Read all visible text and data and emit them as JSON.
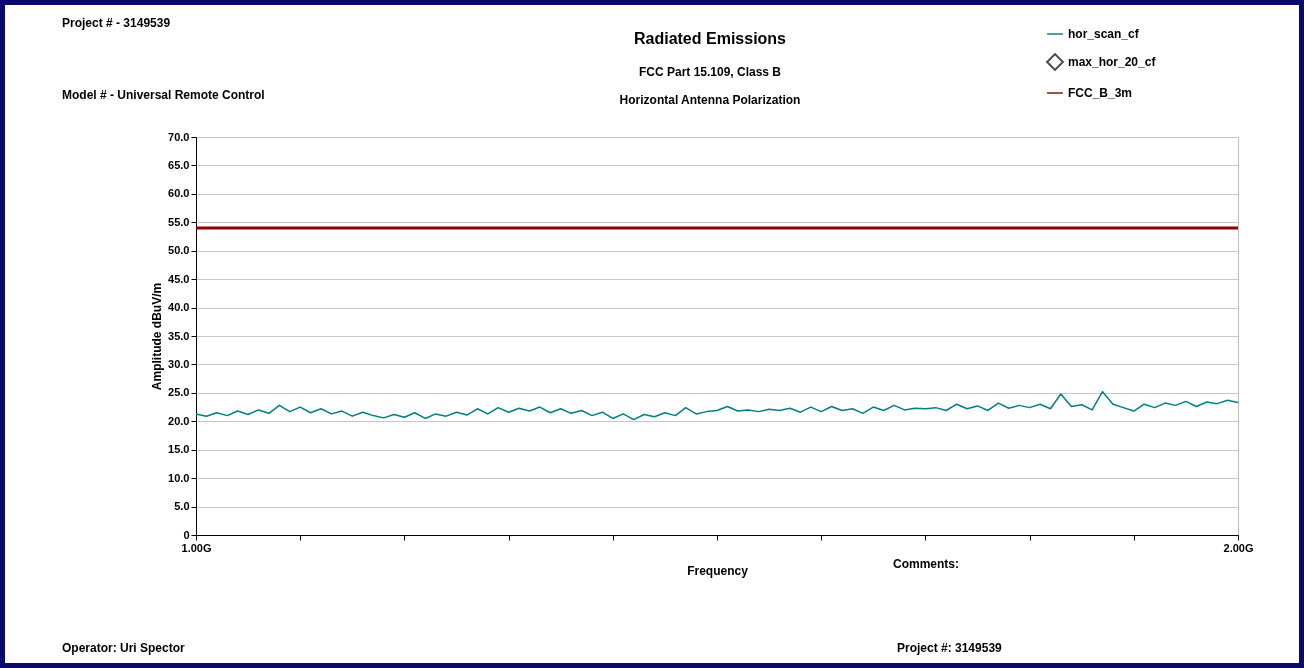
{
  "chart_data": {
    "type": "line",
    "title": "Radiated Emissions",
    "subtitle": "FCC Part 15.109, Class B\nHorizontal Antenna Polarization",
    "xlabel": "Frequency",
    "ylabel": "Amplitude dBuV/m",
    "annotations": [
      "Project # - 3149539",
      "Model # - Universal Remote Control",
      "Comments:",
      "Operator: Uri Spector",
      "Project #: 3149539"
    ],
    "x": [
      1.0,
      1.01,
      1.02,
      1.03,
      1.04,
      1.05,
      1.06,
      1.07,
      1.08,
      1.09,
      1.1,
      1.11,
      1.12,
      1.13,
      1.14,
      1.15,
      1.16,
      1.17,
      1.18,
      1.19,
      1.2,
      1.21,
      1.22,
      1.23,
      1.24,
      1.25,
      1.26,
      1.27,
      1.28,
      1.29,
      1.3,
      1.31,
      1.32,
      1.33,
      1.34,
      1.35,
      1.36,
      1.37,
      1.38,
      1.39,
      1.4,
      1.41,
      1.42,
      1.43,
      1.44,
      1.45,
      1.46,
      1.47,
      1.48,
      1.49,
      1.5,
      1.51,
      1.52,
      1.53,
      1.54,
      1.55,
      1.56,
      1.57,
      1.58,
      1.59,
      1.6,
      1.61,
      1.62,
      1.63,
      1.64,
      1.65,
      1.66,
      1.67,
      1.68,
      1.69,
      1.7,
      1.71,
      1.72,
      1.73,
      1.74,
      1.75,
      1.76,
      1.77,
      1.78,
      1.79,
      1.8,
      1.81,
      1.82,
      1.83,
      1.84,
      1.85,
      1.86,
      1.87,
      1.88,
      1.89,
      1.9,
      1.91,
      1.92,
      1.93,
      1.94,
      1.95,
      1.96,
      1.97,
      1.98,
      1.99,
      2.0
    ],
    "series": [
      {
        "name": "hor_scan_cf",
        "type": "line",
        "color": "#008080",
        "values": [
          21.3,
          20.9,
          21.5,
          21.0,
          21.8,
          21.2,
          22.0,
          21.4,
          22.8,
          21.7,
          22.5,
          21.5,
          22.2,
          21.3,
          21.8,
          20.9,
          21.6,
          21.0,
          20.6,
          21.2,
          20.7,
          21.5,
          20.5,
          21.3,
          20.9,
          21.6,
          21.1,
          22.2,
          21.3,
          22.4,
          21.6,
          22.3,
          21.8,
          22.5,
          21.5,
          22.2,
          21.4,
          21.9,
          21.0,
          21.6,
          20.5,
          21.3,
          20.3,
          21.2,
          20.8,
          21.5,
          21.0,
          22.4,
          21.3,
          21.7,
          21.9,
          22.6,
          21.8,
          22.0,
          21.7,
          22.1,
          21.9,
          22.3,
          21.6,
          22.5,
          21.7,
          22.6,
          21.9,
          22.2,
          21.4,
          22.5,
          21.9,
          22.8,
          22.0,
          22.3,
          22.2,
          22.4,
          21.9,
          23.0,
          22.2,
          22.7,
          21.9,
          23.2,
          22.3,
          22.8,
          22.4,
          23.0,
          22.2,
          24.8,
          22.6,
          22.9,
          22.0,
          25.2,
          23.0,
          22.4,
          21.8,
          23.0,
          22.4,
          23.2,
          22.8,
          23.5,
          22.6,
          23.4,
          23.1,
          23.7,
          23.3
        ]
      },
      {
        "name": "max_hor_20_cf",
        "type": "scatter",
        "marker": "diamond",
        "color": "#000000",
        "values": [
          null,
          null,
          null,
          null,
          null,
          null,
          null,
          null,
          null,
          null,
          null,
          null,
          null,
          null,
          null,
          null,
          null,
          null,
          null,
          null,
          null,
          null,
          null,
          null,
          null,
          null,
          null,
          null,
          null,
          null,
          null,
          null,
          null,
          null,
          null,
          null,
          null,
          null,
          null,
          null,
          null,
          null,
          null,
          null,
          null,
          null,
          null,
          null,
          null,
          null,
          null,
          null,
          null,
          null,
          null,
          null,
          null,
          null,
          null,
          null,
          null,
          null,
          null,
          null,
          null,
          null,
          null,
          null,
          null,
          null,
          null,
          null,
          null,
          null,
          null,
          null,
          null,
          null,
          null,
          null,
          null,
          null,
          null,
          null,
          null,
          null,
          null,
          null,
          null,
          null,
          null,
          null,
          null,
          null,
          null,
          null,
          null,
          null,
          null,
          null,
          null
        ]
      },
      {
        "name": "FCC_B_3m",
        "type": "line",
        "color": "#8b0000",
        "x": [
          1,
          2
        ],
        "values": [
          54,
          54
        ]
      }
    ],
    "xlim": [
      1,
      2
    ],
    "xticks": [
      {
        "value": 1,
        "label": "1.00G"
      },
      {
        "value": 1.1,
        "label": null
      },
      {
        "value": 1.2,
        "label": null
      },
      {
        "value": 1.3,
        "label": null
      },
      {
        "value": 1.4,
        "label": null
      },
      {
        "value": 1.5,
        "label": null
      },
      {
        "value": 1.6,
        "label": null
      },
      {
        "value": 1.7,
        "label": null
      },
      {
        "value": 1.8,
        "label": null
      },
      {
        "value": 1.9,
        "label": null
      },
      {
        "value": 2,
        "label": "2.00G"
      }
    ],
    "ylim": [
      0,
      70
    ],
    "yticks": [
      0,
      {
        "value": 5,
        "label": "5.0"
      },
      {
        "value": 10,
        "label": "10.0"
      },
      {
        "value": 15,
        "label": "15.0"
      },
      {
        "value": 20,
        "label": "20.0"
      },
      {
        "value": 25,
        "label": "25.0"
      },
      {
        "value": 30,
        "label": "30.0"
      },
      {
        "value": 35,
        "label": "35.0"
      },
      {
        "value": 40,
        "label": "40.0"
      },
      {
        "value": 45,
        "label": "45.0"
      },
      {
        "value": 50,
        "label": "50.0"
      },
      {
        "value": 55,
        "label": "55.0"
      },
      {
        "value": 60,
        "label": "60.0"
      },
      {
        "value": 65,
        "label": "65.0"
      },
      {
        "value": 70,
        "label": "70.0"
      }
    ],
    "grid": "y",
    "legend": "top right"
  }
}
